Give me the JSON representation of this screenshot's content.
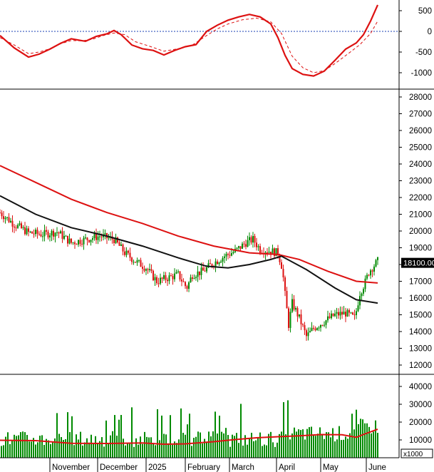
{
  "chart_data": [
    {
      "panel": "macd",
      "type": "line",
      "y_ticks": [
        500,
        0,
        -500,
        -1000
      ],
      "ylim": [
        -1200,
        750
      ],
      "zero_line": true,
      "series": [
        {
          "color": "#dd1111",
          "style": "solid",
          "points": [
            [
              0,
              -100
            ],
            [
              20,
              -400
            ],
            [
              40,
              -620
            ],
            [
              55,
              -550
            ],
            [
              70,
              -430
            ],
            [
              85,
              -290
            ],
            [
              100,
              -180
            ],
            [
              110,
              -210
            ],
            [
              120,
              -240
            ],
            [
              135,
              -120
            ],
            [
              150,
              -60
            ],
            [
              160,
              20
            ],
            [
              170,
              -80
            ],
            [
              185,
              -330
            ],
            [
              200,
              -420
            ],
            [
              215,
              -460
            ],
            [
              230,
              -570
            ],
            [
              245,
              -460
            ],
            [
              260,
              -370
            ],
            [
              275,
              -320
            ],
            [
              290,
              0
            ],
            [
              305,
              150
            ],
            [
              320,
              270
            ],
            [
              335,
              350
            ],
            [
              350,
              410
            ],
            [
              365,
              350
            ],
            [
              380,
              180
            ],
            [
              390,
              -150
            ],
            [
              400,
              -580
            ],
            [
              410,
              -900
            ],
            [
              425,
              -1040
            ],
            [
              440,
              -1080
            ],
            [
              455,
              -960
            ],
            [
              470,
              -700
            ],
            [
              485,
              -430
            ],
            [
              500,
              -280
            ],
            [
              510,
              -80
            ],
            [
              520,
              250
            ],
            [
              530,
              640
            ]
          ]
        },
        {
          "color": "#dd1111",
          "style": "dashed",
          "points": [
            [
              0,
              -150
            ],
            [
              20,
              -330
            ],
            [
              40,
              -540
            ],
            [
              55,
              -500
            ],
            [
              70,
              -420
            ],
            [
              85,
              -300
            ],
            [
              100,
              -220
            ],
            [
              115,
              -230
            ],
            [
              130,
              -190
            ],
            [
              145,
              -100
            ],
            [
              160,
              -40
            ],
            [
              175,
              -80
            ],
            [
              190,
              -250
            ],
            [
              210,
              -360
            ],
            [
              230,
              -480
            ],
            [
              250,
              -420
            ],
            [
              270,
              -330
            ],
            [
              290,
              -100
            ],
            [
              305,
              60
            ],
            [
              320,
              180
            ],
            [
              340,
              280
            ],
            [
              360,
              320
            ],
            [
              380,
              230
            ],
            [
              395,
              -50
            ],
            [
              410,
              -600
            ],
            [
              425,
              -880
            ],
            [
              440,
              -1000
            ],
            [
              455,
              -950
            ],
            [
              470,
              -780
            ],
            [
              490,
              -520
            ],
            [
              505,
              -320
            ],
            [
              520,
              -50
            ],
            [
              530,
              250
            ]
          ]
        }
      ]
    },
    {
      "panel": "price",
      "type": "candlestick",
      "y_ticks": [
        28000,
        27000,
        26000,
        25000,
        24000,
        23000,
        22000,
        21000,
        20000,
        19000,
        18000,
        17000,
        16000,
        15000,
        14000,
        13000,
        12000
      ],
      "ylim": [
        11500,
        28300
      ],
      "last_price_label": "18100.00",
      "ohlc": [],
      "ma_series": [
        {
          "color": "#dd1111",
          "points": [
            [
              0,
              23900
            ],
            [
              50,
              22900
            ],
            [
              100,
              21900
            ],
            [
              150,
              21100
            ],
            [
              200,
              20450
            ],
            [
              250,
              19700
            ],
            [
              300,
              19100
            ],
            [
              350,
              18700
            ],
            [
              390,
              18600
            ],
            [
              420,
              18300
            ],
            [
              460,
              17600
            ],
            [
              500,
              17000
            ],
            [
              530,
              16900
            ]
          ]
        },
        {
          "color": "#111111",
          "points": [
            [
              0,
              22100
            ],
            [
              50,
              21000
            ],
            [
              100,
              20200
            ],
            [
              150,
              19700
            ],
            [
              200,
              19100
            ],
            [
              250,
              18400
            ],
            [
              290,
              17900
            ],
            [
              320,
              17800
            ],
            [
              350,
              18000
            ],
            [
              380,
              18300
            ],
            [
              395,
              18500
            ],
            [
              430,
              17700
            ],
            [
              470,
              16600
            ],
            [
              500,
              15900
            ],
            [
              530,
              15700
            ]
          ]
        }
      ]
    },
    {
      "panel": "volume",
      "type": "bar",
      "y_ticks": [
        40000,
        30000,
        20000,
        10000
      ],
      "ylim": [
        0,
        45000
      ],
      "unit_label": "x1000",
      "volumes": [],
      "ma_series": [
        {
          "color": "#dd1111",
          "points": [
            [
              0,
              9800
            ],
            [
              50,
              9600
            ],
            [
              100,
              8100
            ],
            [
              150,
              8000
            ],
            [
              200,
              8300
            ],
            [
              230,
              7600
            ],
            [
              260,
              7800
            ],
            [
              300,
              9000
            ],
            [
              330,
              10200
            ],
            [
              360,
              11200
            ],
            [
              390,
              11800
            ],
            [
              420,
              12300
            ],
            [
              450,
              13000
            ],
            [
              480,
              12900
            ],
            [
              500,
              11500
            ],
            [
              515,
              13800
            ],
            [
              530,
              16000
            ]
          ]
        }
      ]
    }
  ],
  "x_axis": {
    "labels": [
      "November",
      "December",
      "2025",
      "February",
      "March",
      "April",
      "May",
      "June"
    ]
  }
}
